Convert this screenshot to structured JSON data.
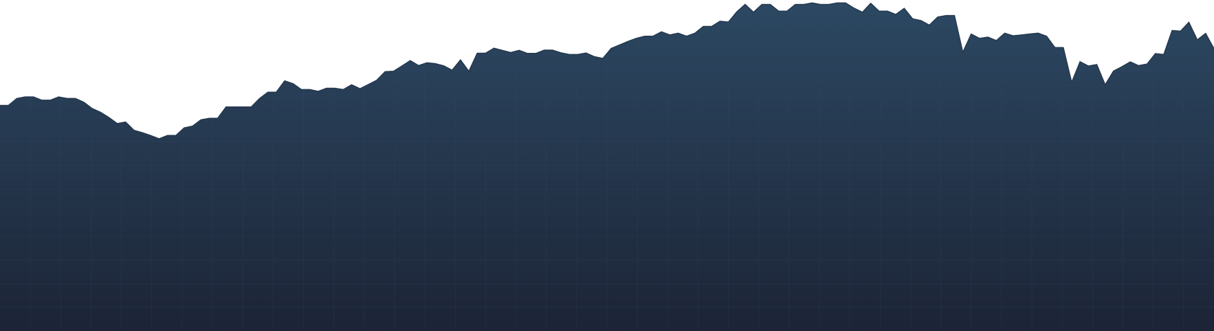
{
  "chart_data": {
    "type": "area",
    "title": "",
    "xlabel": "",
    "ylabel": "",
    "grid": true,
    "legend": "none",
    "ylim": [
      0,
      100
    ],
    "colors": {
      "fill_top": "#2c4862",
      "fill_bottom": "#1c2436",
      "line": "#25394f",
      "grid": "#3a5573"
    },
    "series": [
      {
        "values": [
          52.2,
          52.2,
          55.4,
          56.1,
          56.1,
          54.6,
          54.6,
          56.1,
          55.4,
          55.4,
          53.7,
          50.8,
          49.1,
          46.7,
          43.9,
          44.6,
          40.8,
          39.7,
          38.4,
          36.9,
          38.4,
          38.4,
          41.9,
          42.7,
          45.6,
          46.3,
          46.3,
          51.5,
          51.5,
          51.5,
          51.5,
          55.4,
          58.3,
          58.3,
          63.5,
          62.2,
          59.5,
          59.5,
          58.7,
          60.1,
          60.1,
          59.5,
          61.7,
          59.9,
          61.8,
          63.8,
          67.7,
          67.9,
          70.3,
          72.8,
          70.5,
          71.8,
          71.4,
          70.4,
          68.4,
          73.1,
          67.9,
          76.2,
          76.2,
          78.5,
          77.5,
          76.5,
          77.5,
          76.1,
          76.1,
          77.6,
          77.6,
          76.4,
          75.6,
          75.6,
          76.3,
          74.6,
          73.8,
          78.4,
          80.0,
          81.6,
          83.0,
          84.0,
          84.0,
          86.0,
          84.6,
          85.4,
          84.0,
          85.4,
          88.5,
          88.5,
          90.9,
          90.5,
          95.2,
          98.6,
          95.0,
          98.6,
          98.6,
          95.5,
          95.5,
          98.6,
          98.6,
          99.3,
          98.6,
          98.6,
          99.3,
          99.3,
          96.9,
          95.0,
          99.1,
          95.5,
          95.5,
          94.0,
          96.8,
          92.0,
          91.2,
          89.1,
          92.8,
          93.5,
          93.5,
          76.6,
          85.0,
          83.0,
          83.6,
          82.0,
          85.4,
          84.2,
          84.6,
          85.0,
          85.4,
          84.0,
          78.8,
          78.8,
          62.8,
          72.3,
          70.3,
          71.0,
          61.7,
          68.0,
          70.0,
          72.2,
          70.5,
          71.2,
          76.0,
          75.6,
          86.6,
          86.3,
          90.4,
          82.3,
          85.3,
          78.3
        ]
      }
    ]
  }
}
